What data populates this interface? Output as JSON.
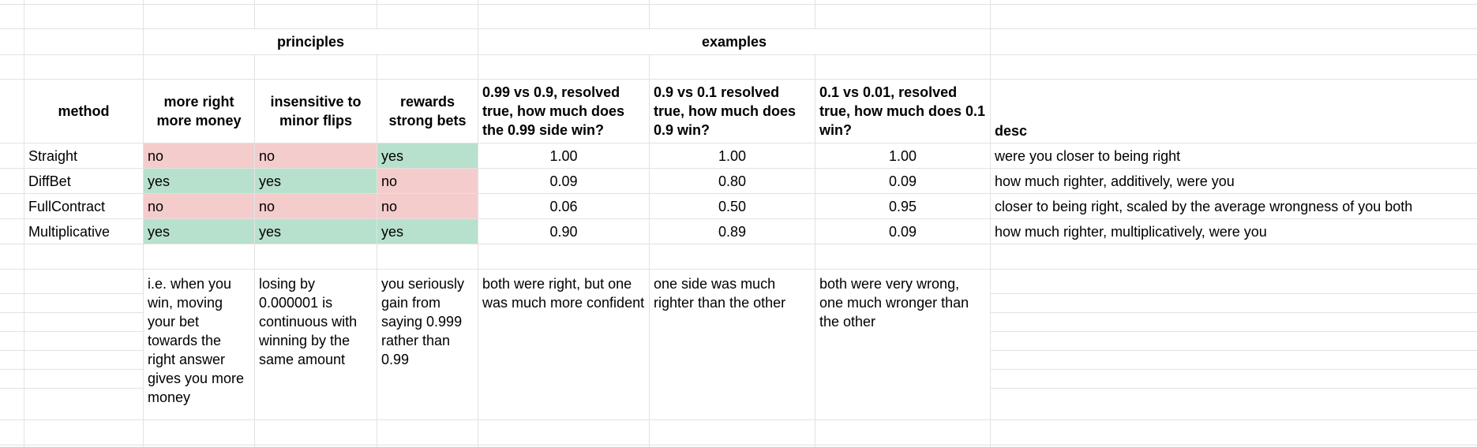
{
  "groups": {
    "principles": "principles",
    "examples": "examples"
  },
  "headers": {
    "method": "method",
    "p1": "more right more money",
    "p2": "insensitive to minor flips",
    "p3": "rewards strong bets",
    "e1": "0.99 vs 0.9, resolved true, how much does the 0.99 side win?",
    "e2": "0.9 vs 0.1 resolved true, how much does 0.9 win?",
    "e3": "0.1 vs 0.01, resolved true, how much does 0.1 win?",
    "desc": "desc"
  },
  "rows": [
    {
      "method": "Straight",
      "p1": "no",
      "p2": "no",
      "p3": "yes",
      "e1": "1.00",
      "e2": "1.00",
      "e3": "1.00",
      "desc": "were you closer to being right"
    },
    {
      "method": "DiffBet",
      "p1": "yes",
      "p2": "yes",
      "p3": "no",
      "e1": "0.09",
      "e2": "0.80",
      "e3": "0.09",
      "desc": "how much righter, additively, were you"
    },
    {
      "method": "FullContract",
      "p1": "no",
      "p2": "no",
      "p3": "no",
      "e1": "0.06",
      "e2": "0.50",
      "e3": "0.95",
      "desc": "closer to being right, scaled by the average wrongness of you both"
    },
    {
      "method": "Multiplicative",
      "p1": "yes",
      "p2": "yes",
      "p3": "yes",
      "e1": "0.90",
      "e2": "0.89",
      "e3": "0.09",
      "desc": "how much righter, multiplicatively, were you"
    }
  ],
  "notes": {
    "p1": "i.e. when you win, moving your bet towards the right answer gives you more money",
    "p2": "losing by 0.000001 is continuous with winning by the same amount",
    "p3": "you seriously gain from saying 0.999 rather than 0.99",
    "e1": "both were right, but one was much more confident",
    "e2": "one side was much righter than the other",
    "e3": "both were very wrong, one much wronger than the other"
  },
  "colors": {
    "no": "#f4cccc",
    "yes": "#b7e1cd",
    "grid": "#e2e2e2"
  }
}
